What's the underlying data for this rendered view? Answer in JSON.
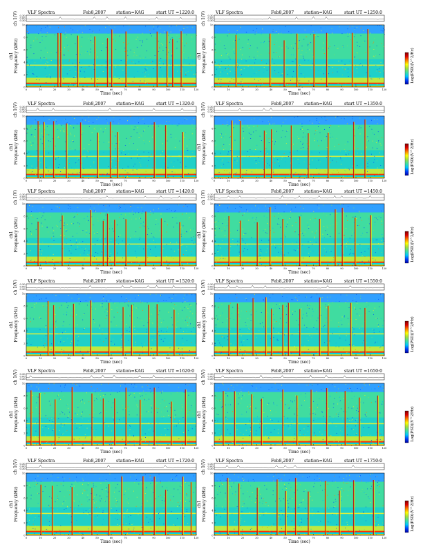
{
  "chart_data": {
    "type": "heatmap",
    "common": {
      "header_left": "VLF Spectra",
      "date": "Feb8,2007",
      "station": "station=KAG",
      "ut_prefix": "start UT =",
      "xlabel": "Time (sec)",
      "ylabel_top": "ch 1(V)",
      "ylabel_main": "ch1\nFrequency (kHz)",
      "colorbar_label": "Log(PSD)(V^2/Hz)",
      "colormap": [
        "#0000a0",
        "#0040ff",
        "#00c8ff",
        "#40e0a0",
        "#a0e040",
        "#ffff00",
        "#ff8000",
        "#e00000",
        "#800000"
      ],
      "xlim": [
        0,
        120
      ],
      "ylim": [
        0,
        10
      ],
      "x_ticks": [
        "0",
        "10",
        "20",
        "30",
        "40",
        "50",
        "60",
        "70",
        "80",
        "90",
        "100",
        "110",
        "120"
      ],
      "y_ticks": [
        "0",
        "2",
        "4",
        "6",
        "8",
        "10"
      ],
      "top_y_ticks": [
        "0.30",
        "0.00",
        "0.30"
      ]
    },
    "panels": [
      {
        "ut": "1220:0",
        "spikes": [
          22,
          24,
          36,
          48,
          57,
          60,
          70,
          92,
          99,
          103,
          109
        ]
      },
      {
        "ut": "1250:0",
        "spikes": [
          15,
          39,
          49,
          58,
          70,
          79,
          97,
          108
        ]
      },
      {
        "ut": "1320:0",
        "spikes": [
          8,
          12,
          19,
          28,
          38,
          50,
          59,
          64,
          90,
          98,
          110
        ]
      },
      {
        "ut": "1350:0",
        "spikes": [
          12,
          18,
          35,
          40,
          54,
          66,
          80,
          98,
          106
        ]
      },
      {
        "ut": "1420:0",
        "spikes": [
          8,
          25,
          45,
          54,
          57,
          62,
          70,
          84,
          95,
          108
        ]
      },
      {
        "ut": "1450:0",
        "spikes": [
          10,
          18,
          30,
          39,
          48,
          60,
          74,
          85,
          90,
          99,
          110
        ]
      },
      {
        "ut": "1520:0",
        "spikes": [
          15,
          19,
          33,
          45,
          58,
          68,
          74,
          86,
          92,
          104
        ]
      },
      {
        "ut": "1550:0",
        "spikes": [
          10,
          16,
          27,
          36,
          40,
          48,
          52,
          60,
          74,
          80,
          96,
          106
        ]
      },
      {
        "ut": "1620:0",
        "spikes": [
          3,
          9,
          20,
          32,
          46,
          54,
          62,
          70,
          80,
          90,
          102,
          112
        ]
      },
      {
        "ut": "1650:0",
        "spikes": [
          6,
          14,
          26,
          33,
          48,
          58,
          68,
          79,
          92,
          102,
          115
        ]
      },
      {
        "ut": "1720:0",
        "spikes": [
          10,
          18,
          32,
          46,
          58,
          67,
          82,
          90,
          98,
          110,
          116
        ]
      },
      {
        "ut": "1750:0",
        "spikes": [
          9,
          17,
          30,
          44,
          50,
          57,
          66,
          78,
          88,
          98,
          112
        ]
      }
    ]
  }
}
